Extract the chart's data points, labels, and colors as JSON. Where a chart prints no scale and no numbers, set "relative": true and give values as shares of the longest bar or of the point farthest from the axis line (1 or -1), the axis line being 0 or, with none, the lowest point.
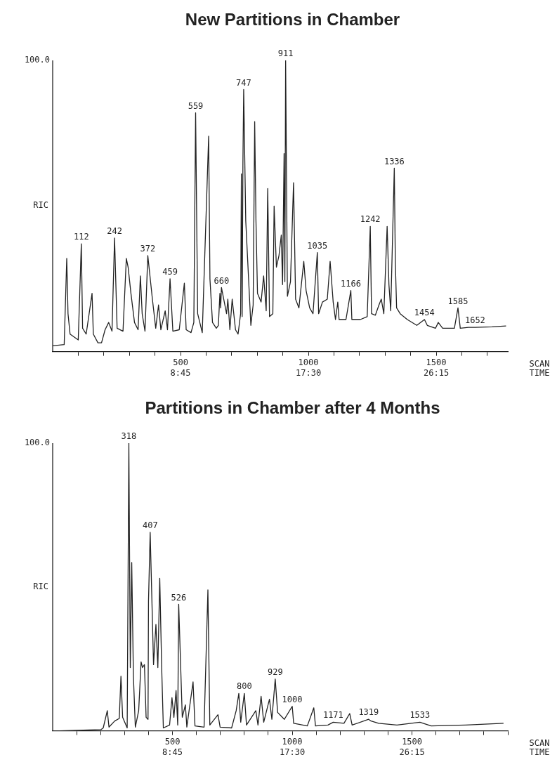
{
  "chart_data": [
    {
      "type": "line",
      "title": "New Partitions in Chamber",
      "xlabel": "SCAN\nTIME",
      "ylabel": "RIC",
      "relative": true,
      "grid": false,
      "xlim": [
        0,
        1780
      ],
      "xticks": [
        {
          "value": 100,
          "label": null
        },
        {
          "value": 200,
          "label": null
        },
        {
          "value": 300,
          "label": null
        },
        {
          "value": 400,
          "label": null
        },
        500,
        {
          "value": 600,
          "label": null
        },
        {
          "value": 700,
          "label": null
        },
        {
          "value": 800,
          "label": null
        },
        {
          "value": 900,
          "label": null
        },
        1000,
        {
          "value": 1100,
          "label": null
        },
        {
          "value": 1200,
          "label": null
        },
        {
          "value": 1300,
          "label": null
        },
        {
          "value": 1400,
          "label": null
        },
        1500,
        {
          "value": 1600,
          "label": null
        },
        {
          "value": 1700,
          "label": null
        }
      ],
      "series": [
        {
          "color": "#222222",
          "x": [
            0,
            45,
            52,
            55,
            60,
            68,
            100,
            112,
            117,
            131,
            154,
            159,
            177,
            191,
            205,
            219,
            232,
            242,
            252,
            275,
            288,
            295,
            306,
            320,
            334,
            343,
            350,
            361,
            372,
            390,
            403,
            414,
            423,
            440,
            449,
            459,
            470,
            495,
            515,
            522,
            541,
            552,
            559,
            567,
            585,
            610,
            615,
            625,
            640,
            648,
            654,
            657,
            660,
            680,
            685,
            693,
            702,
            715,
            725,
            735,
            738,
            741,
            744,
            747,
            755,
            775,
            784,
            790,
            795,
            801,
            815,
            825,
            835,
            841,
            848,
            861,
            866,
            875,
            885,
            894,
            899,
            905,
            908,
            911,
            918,
            930,
            942,
            950,
            963,
            982,
            991,
            1005,
            1018,
            1035,
            1040,
            1055,
            1074,
            1085,
            1097,
            1106,
            1115,
            1120,
            1147,
            1166,
            1170,
            1203,
            1230,
            1242,
            1247,
            1262,
            1276,
            1285,
            1295,
            1308,
            1315,
            1322,
            1336,
            1340,
            1345,
            1359,
            1387,
            1424,
            1454,
            1465,
            1497,
            1508,
            1525,
            1571,
            1585,
            1594,
            1626,
            1652,
            1718,
            1773
          ],
          "values": [
            0.02,
            0.024,
            0.23,
            0.32,
            0.13,
            0.06,
            0.04,
            0.37,
            0.08,
            0.06,
            0.2,
            0.06,
            0.03,
            0.03,
            0.075,
            0.1,
            0.07,
            0.39,
            0.08,
            0.07,
            0.32,
            0.29,
            0.2,
            0.1,
            0.075,
            0.26,
            0.13,
            0.07,
            0.33,
            0.18,
            0.08,
            0.16,
            0.075,
            0.14,
            0.075,
            0.25,
            0.07,
            0.075,
            0.235,
            0.075,
            0.065,
            0.1,
            0.82,
            0.13,
            0.065,
            0.74,
            0.25,
            0.1,
            0.08,
            0.09,
            0.2,
            0.15,
            0.22,
            0.13,
            0.18,
            0.075,
            0.18,
            0.075,
            0.06,
            0.13,
            0.61,
            0.12,
            0.65,
            0.9,
            0.45,
            0.09,
            0.16,
            0.79,
            0.45,
            0.2,
            0.17,
            0.26,
            0.14,
            0.56,
            0.12,
            0.13,
            0.5,
            0.29,
            0.33,
            0.4,
            0.23,
            0.68,
            0.24,
            1.0,
            0.19,
            0.24,
            0.58,
            0.18,
            0.15,
            0.31,
            0.21,
            0.15,
            0.13,
            0.34,
            0.13,
            0.17,
            0.18,
            0.31,
            0.17,
            0.11,
            0.17,
            0.11,
            0.11,
            0.21,
            0.11,
            0.11,
            0.12,
            0.43,
            0.13,
            0.125,
            0.16,
            0.18,
            0.13,
            0.43,
            0.23,
            0.14,
            0.63,
            0.31,
            0.15,
            0.13,
            0.11,
            0.09,
            0.11,
            0.09,
            0.08,
            0.1,
            0.08,
            0.08,
            0.15,
            0.08,
            0.083,
            0.083,
            0.085,
            0.088
          ]
        }
      ],
      "annotations": [
        "100.0",
        "8:45",
        "17:30",
        "26:15",
        {
          "text": "112",
          "x": 112,
          "y": 0.37
        },
        {
          "text": "242",
          "x": 242,
          "y": 0.39
        },
        {
          "text": "372",
          "x": 372,
          "y": 0.33
        },
        {
          "text": "459",
          "x": 459,
          "y": 0.25
        },
        {
          "text": "559",
          "x": 559,
          "y": 0.82
        },
        {
          "text": "660",
          "x": 660,
          "y": 0.22
        },
        {
          "text": "747",
          "x": 747,
          "y": 0.9
        },
        {
          "text": "911",
          "x": 911,
          "y": 1.0
        },
        {
          "text": "1035",
          "x": 1035,
          "y": 0.34
        },
        {
          "text": "1166",
          "x": 1166,
          "y": 0.21
        },
        {
          "text": "1242",
          "x": 1242,
          "y": 0.43
        },
        {
          "text": "1336",
          "x": 1336,
          "y": 0.63
        },
        {
          "text": "1454",
          "x": 1454,
          "y": 0.11
        },
        {
          "text": "1585",
          "x": 1585,
          "y": 0.15
        },
        {
          "text": "1652",
          "x": 1652,
          "y": 0.083
        }
      ]
    },
    {
      "type": "line",
      "title": "Partitions in Chamber after 4 Months",
      "xlabel": "SCAN\nTIME",
      "ylabel": "RIC",
      "relative": true,
      "grid": false,
      "xlim": [
        0,
        1900
      ],
      "xticks": [
        {
          "value": 100,
          "label": null
        },
        {
          "value": 200,
          "label": null
        },
        {
          "value": 300,
          "label": null
        },
        {
          "value": 400,
          "label": null
        },
        500,
        {
          "value": 600,
          "label": null
        },
        {
          "value": 700,
          "label": null
        },
        {
          "value": 800,
          "label": null
        },
        {
          "value": 900,
          "label": null
        },
        1000,
        {
          "value": 1100,
          "label": null
        },
        {
          "value": 1200,
          "label": null
        },
        {
          "value": 1300,
          "label": null
        },
        {
          "value": 1400,
          "label": null
        },
        1500,
        {
          "value": 1600,
          "label": null
        },
        {
          "value": 1700,
          "label": null
        },
        {
          "value": 1800,
          "label": null
        },
        {
          "value": 1900,
          "label": null
        }
      ],
      "series": [
        {
          "color": "#222222",
          "x": [
            29,
            201,
            211,
            228,
            235,
            259,
            278,
            285,
            292,
            311,
            318,
            324,
            330,
            337,
            345,
            359,
            369,
            375,
            383,
            390,
            398,
            400,
            407,
            421,
            431,
            439,
            447,
            455,
            462,
            488,
            498,
            506,
            515,
            522,
            526,
            541,
            554,
            560,
            586,
            594,
            632,
            648,
            656,
            690,
            699,
            747,
            766,
            777,
            785,
            800,
            809,
            848,
            857,
            870,
            881,
            905,
            915,
            929,
            939,
            967,
            1000,
            1006,
            1063,
            1090,
            1097,
            1149,
            1171,
            1216,
            1240,
            1250,
            1319,
            1327,
            1360,
            1437,
            1533,
            1580,
            1724,
            1882
          ],
          "values": [
            0,
            0.004,
            0.01,
            0.07,
            0.013,
            0.034,
            0.043,
            0.19,
            0.047,
            0.01,
            1.0,
            0.22,
            0.585,
            0.19,
            0.013,
            0.07,
            0.24,
            0.22,
            0.23,
            0.047,
            0.04,
            0.45,
            0.69,
            0.23,
            0.37,
            0.22,
            0.53,
            0.22,
            0.01,
            0.02,
            0.115,
            0.047,
            0.14,
            0.02,
            0.44,
            0.047,
            0.09,
            0.013,
            0.17,
            0.017,
            0.013,
            0.49,
            0.02,
            0.056,
            0.013,
            0.01,
            0.07,
            0.13,
            0.03,
            0.13,
            0.02,
            0.07,
            0.02,
            0.12,
            0.03,
            0.11,
            0.04,
            0.18,
            0.064,
            0.04,
            0.085,
            0.026,
            0.017,
            0.08,
            0.017,
            0.02,
            0.03,
            0.026,
            0.06,
            0.02,
            0.04,
            0.035,
            0.026,
            0.02,
            0.03,
            0.017,
            0.02,
            0.026
          ]
        }
      ],
      "annotations": [
        "100.0",
        "8:45",
        "17:30",
        "26:15",
        {
          "text": "318",
          "x": 318,
          "y": 1.0
        },
        {
          "text": "407",
          "x": 407,
          "y": 0.69
        },
        {
          "text": "526",
          "x": 526,
          "y": 0.44
        },
        {
          "text": "800",
          "x": 800,
          "y": 0.13
        },
        {
          "text": "929",
          "x": 929,
          "y": 0.18
        },
        {
          "text": "1000",
          "x": 1000,
          "y": 0.085
        },
        {
          "text": "1171",
          "x": 1171,
          "y": 0.03
        },
        {
          "text": "1319",
          "x": 1319,
          "y": 0.04
        },
        {
          "text": "1533",
          "x": 1533,
          "y": 0.03
        }
      ]
    }
  ]
}
